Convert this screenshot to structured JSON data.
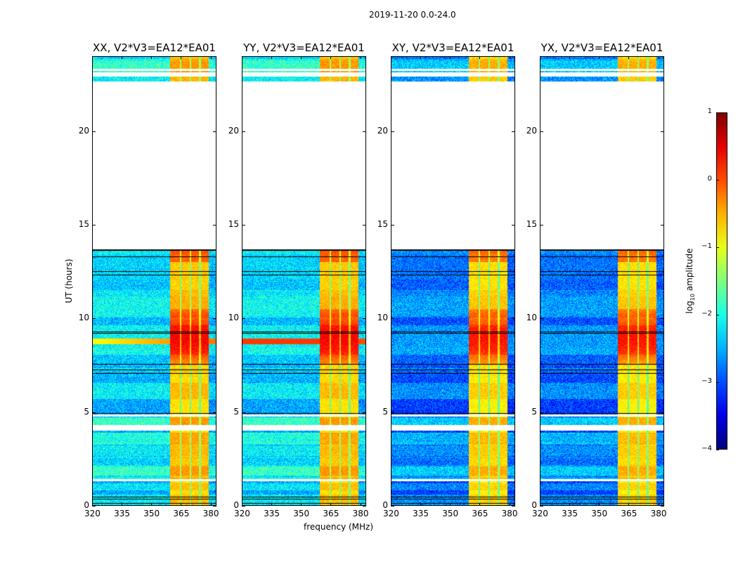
{
  "chart_data": {
    "type": "heatmap",
    "suptitle": "2019-11-20 0.0-24.0",
    "xlabel": "frequency (MHz)",
    "ylabel": "UT (hours)",
    "xlim": [
      320,
      383
    ],
    "ylim": [
      0,
      24
    ],
    "xticks": [
      "320",
      "335",
      "350",
      "365",
      "380"
    ],
    "xtick_values": [
      320,
      335,
      350,
      365,
      380
    ],
    "yticks": [
      "0",
      "5",
      "10",
      "15",
      "20"
    ],
    "ytick_values": [
      0,
      5,
      10,
      15,
      20
    ],
    "colormap": "jet",
    "clim": [
      -4,
      1
    ],
    "colorbar": {
      "label_prefix": "log",
      "label_sub": "10",
      "label_suffix": " amplitude",
      "ticks": [
        "1",
        "0",
        "−1",
        "−2",
        "−3",
        "−4"
      ],
      "tick_values": [
        1,
        0,
        -1,
        -2,
        -3,
        -4
      ]
    },
    "panels": [
      {
        "title": "XX, V2*V3=EA12*EA01",
        "background_level": -2.3,
        "band_level": -0.6
      },
      {
        "title": "YY, V2*V3=EA12*EA01",
        "background_level": -2.3,
        "band_level": -0.6
      },
      {
        "title": "XY, V2*V3=EA12*EA01",
        "background_level": -2.8,
        "band_level": -0.7
      },
      {
        "title": "YX, V2*V3=EA12*EA01",
        "background_level": -2.8,
        "band_level": -0.7
      }
    ],
    "bright_band_mhz": [
      359.5,
      379.5
    ],
    "subband_edges_mhz": [
      365,
      370,
      375
    ],
    "flagged_hours": [
      13.7,
      22.7
    ],
    "peak_activity_hours": [
      7.5,
      10.5
    ]
  }
}
